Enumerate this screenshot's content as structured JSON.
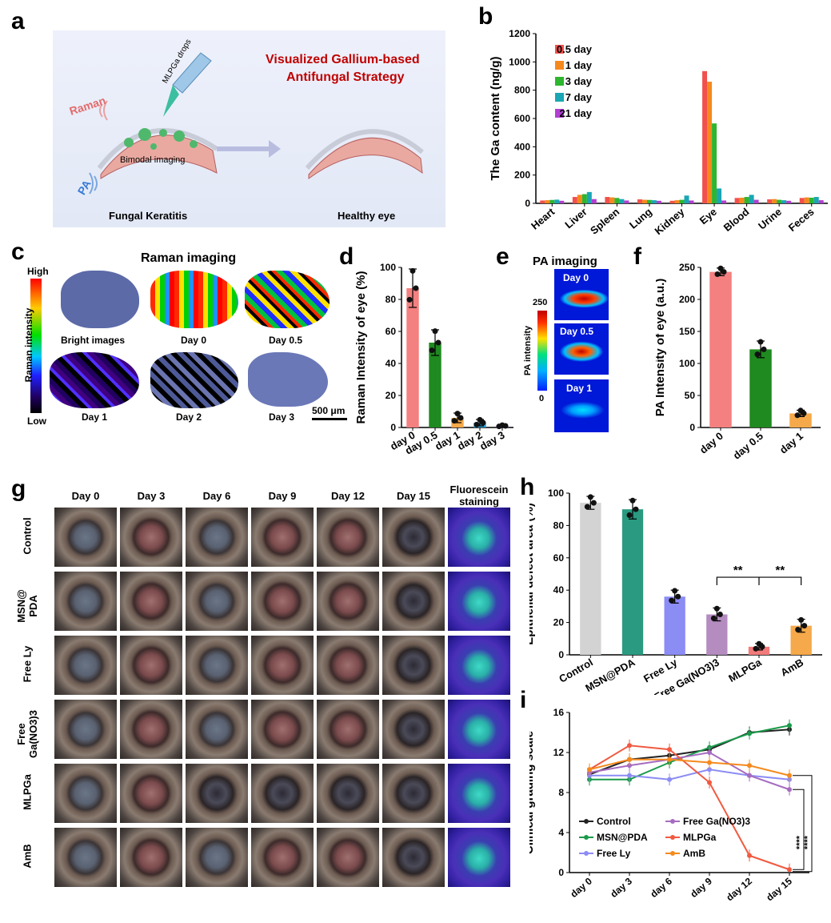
{
  "panels": {
    "a": {
      "label": "a",
      "title_line1": "Visualized Gallium-based",
      "title_line2": "Antifungal Strategy",
      "raman": "Raman",
      "drops": "MLPGa drops",
      "bimodal": "Bimodal imaging",
      "pa": "PA",
      "left_caption": "Fungal Keratitis",
      "right_caption": "Healthy eye"
    },
    "b": {
      "label": "b"
    },
    "c": {
      "label": "c",
      "title": "Raman imaging",
      "cb_high": "High",
      "cb_low": "Low",
      "cb_axis": "Raman intensity",
      "captions": [
        "Bright images",
        "Day 0",
        "Day 0.5",
        "Day 1",
        "Day 2",
        "Day 3"
      ],
      "scale": "500 μm"
    },
    "d": {
      "label": "d"
    },
    "e": {
      "label": "e",
      "title": "PA imaging",
      "cb_max": "250",
      "cb_min": "0",
      "cb_axis": "PA intensity",
      "frames": [
        "Day 0",
        "Day 0.5",
        "Day 1"
      ]
    },
    "f": {
      "label": "f"
    },
    "g": {
      "label": "g",
      "columns": [
        "Day 0",
        "Day 3",
        "Day 6",
        "Day 9",
        "Day 12",
        "Day 15",
        "Fluorescein staining"
      ],
      "rows": [
        "Control",
        "MSN@ PDA",
        "Free Ly",
        "Free Ga(NO3)3",
        "MLPGa",
        "AmB"
      ]
    },
    "h": {
      "label": "h"
    },
    "i": {
      "label": "i"
    }
  },
  "chart_data": [
    {
      "id": "b",
      "type": "bar",
      "ylabel": "The Ga content (ng/g)",
      "ylim": [
        0,
        1200
      ],
      "yticks": [
        0,
        200,
        400,
        600,
        800,
        1000,
        1200
      ],
      "categories": [
        "Heart",
        "Liver",
        "Spleen",
        "Lung",
        "Kidney",
        "Eye",
        "Blood",
        "Urine",
        "Feces"
      ],
      "legend": "top-left",
      "series": [
        {
          "name": "0.5 day",
          "color": "#f2504b",
          "values": [
            20,
            45,
            45,
            28,
            18,
            935,
            38,
            28,
            38
          ]
        },
        {
          "name": "1 day",
          "color": "#f5891d",
          "values": [
            22,
            60,
            42,
            25,
            22,
            860,
            40,
            30,
            42
          ]
        },
        {
          "name": "3 day",
          "color": "#2fb52f",
          "values": [
            24,
            65,
            38,
            24,
            25,
            565,
            45,
            25,
            40
          ]
        },
        {
          "name": "7 day",
          "color": "#1aa6b4",
          "values": [
            26,
            80,
            30,
            22,
            55,
            105,
            60,
            22,
            45
          ]
        },
        {
          "name": "21 day",
          "color": "#b23fd1",
          "values": [
            18,
            30,
            20,
            18,
            20,
            20,
            25,
            18,
            22
          ]
        }
      ]
    },
    {
      "id": "d",
      "type": "bar",
      "ylabel": "Raman Intensity of eye (%)",
      "ylim": [
        0,
        100
      ],
      "yticks": [
        0,
        20,
        40,
        60,
        80,
        100
      ],
      "categories": [
        "day 0",
        "day 0.5",
        "day 1",
        "day 2",
        "day 3"
      ],
      "colors": [
        "#f48080",
        "#1f8a1f",
        "#f5a94a",
        "#2a9fd6",
        "#8f5cc7"
      ],
      "values": [
        87,
        53,
        6,
        3,
        1
      ],
      "errors": [
        12,
        8,
        3,
        2,
        0.5
      ]
    },
    {
      "id": "f",
      "type": "bar",
      "ylabel": "PA Intensity of eye (a.u.)",
      "ylim": [
        0,
        250
      ],
      "yticks": [
        0,
        50,
        100,
        150,
        200,
        250
      ],
      "categories": [
        "day 0",
        "day 0.5",
        "day 1"
      ],
      "colors": [
        "#f48080",
        "#1f8a1f",
        "#f5a94a"
      ],
      "values": [
        243,
        122,
        22
      ],
      "errors": [
        6,
        13,
        5
      ]
    },
    {
      "id": "h",
      "type": "bar",
      "ylabel": "Epithelial defect area (%)",
      "ylim": [
        0,
        100
      ],
      "yticks": [
        0,
        20,
        40,
        60,
        80,
        100
      ],
      "categories": [
        "Control",
        "MSN@PDA",
        "Free Ly",
        "Free Ga(NO3)3",
        "MLPGa",
        "AmB"
      ],
      "colors": [
        "#d3d3d3",
        "#2a9a80",
        "#8c8cf5",
        "#b48cc0",
        "#f27b7b",
        "#f5a94a"
      ],
      "values": [
        94,
        90,
        36,
        25,
        5,
        18
      ],
      "errors": [
        4,
        6,
        4,
        4,
        2,
        4
      ],
      "annotations": [
        "**",
        "**"
      ]
    },
    {
      "id": "i",
      "type": "line",
      "ylabel": "Clinical grading scale",
      "ylim": [
        0,
        16
      ],
      "yticks": [
        0,
        4,
        8,
        12,
        16
      ],
      "x": [
        "day 0",
        "day 3",
        "day 6",
        "day 9",
        "day 12",
        "day 15"
      ],
      "legend": "bottom-left",
      "annotations": [
        "****",
        "****"
      ],
      "series": [
        {
          "name": "Control",
          "color": "#222222",
          "values": [
            9.8,
            11.3,
            11.7,
            12.3,
            14.0,
            14.3
          ]
        },
        {
          "name": "MSN@PDA",
          "color": "#1a9a4a",
          "values": [
            9.3,
            9.3,
            11.0,
            12.5,
            13.9,
            14.7
          ]
        },
        {
          "name": "Free Ly",
          "color": "#8c8cf5",
          "values": [
            9.7,
            9.7,
            9.3,
            10.3,
            9.7,
            9.3
          ]
        },
        {
          "name": "Free Ga(NO3)3",
          "color": "#a66cc0",
          "values": [
            10.0,
            10.7,
            11.3,
            12.0,
            9.7,
            8.3
          ]
        },
        {
          "name": "MLPGa",
          "color": "#f05a40",
          "values": [
            10.3,
            12.7,
            12.3,
            9.0,
            1.7,
            0.3
          ]
        },
        {
          "name": "AmB",
          "color": "#f58a1d",
          "values": [
            10.3,
            11.3,
            11.3,
            11.0,
            10.7,
            9.7
          ]
        }
      ]
    }
  ]
}
